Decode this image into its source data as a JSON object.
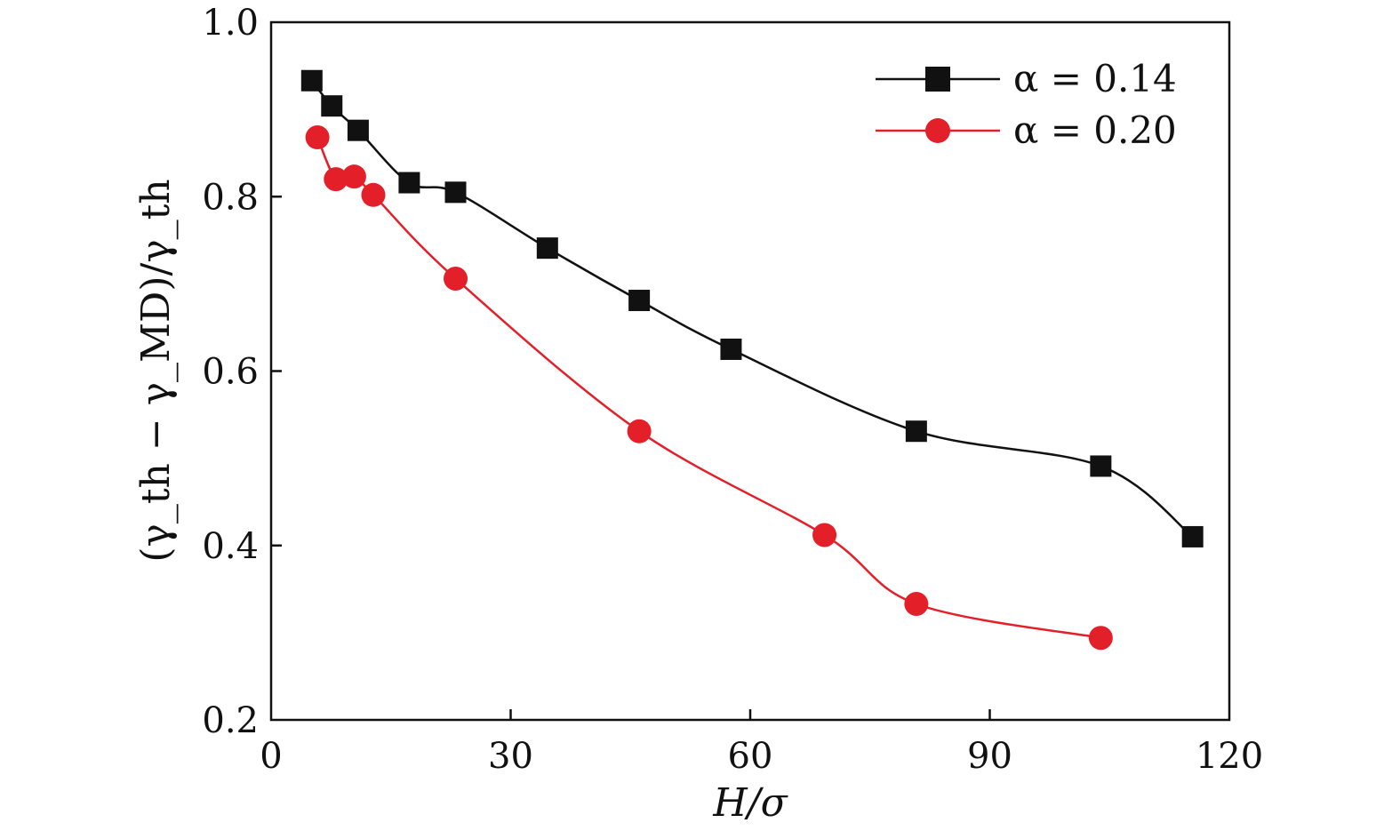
{
  "chart_data": {
    "type": "line",
    "title": "",
    "xlabel": "H/σ",
    "ylabel": "(γ_th − γ_MD)/γ_th",
    "xlim": [
      0,
      120
    ],
    "ylim": [
      0.2,
      1.0
    ],
    "xticks": [
      0,
      30,
      60,
      90,
      120
    ],
    "xtick_labels": [
      "0",
      "30",
      "60",
      "90",
      "120"
    ],
    "yticks": [
      0.2,
      0.4,
      0.6,
      0.8,
      1.0
    ],
    "ytick_labels": [
      "0.2",
      "0.4",
      "0.6",
      "0.8",
      "1.0"
    ],
    "grid": false,
    "legend_position": "top-right",
    "series": [
      {
        "name": "α = 0.14",
        "color": "#111111",
        "marker": "square",
        "x": [
          5.1,
          7.6,
          10.9,
          17.3,
          23.1,
          34.6,
          46.1,
          57.6,
          80.8,
          103.9,
          115.4
        ],
        "y": [
          0.933,
          0.904,
          0.876,
          0.816,
          0.805,
          0.741,
          0.681,
          0.625,
          0.531,
          0.491,
          0.41
        ]
      },
      {
        "name": "α = 0.20",
        "color": "#e3202a",
        "marker": "circle",
        "x": [
          5.8,
          8.1,
          10.4,
          12.8,
          23.1,
          46.1,
          69.3,
          80.8,
          103.9
        ],
        "y": [
          0.868,
          0.82,
          0.823,
          0.802,
          0.706,
          0.531,
          0.412,
          0.333,
          0.294
        ]
      }
    ]
  }
}
